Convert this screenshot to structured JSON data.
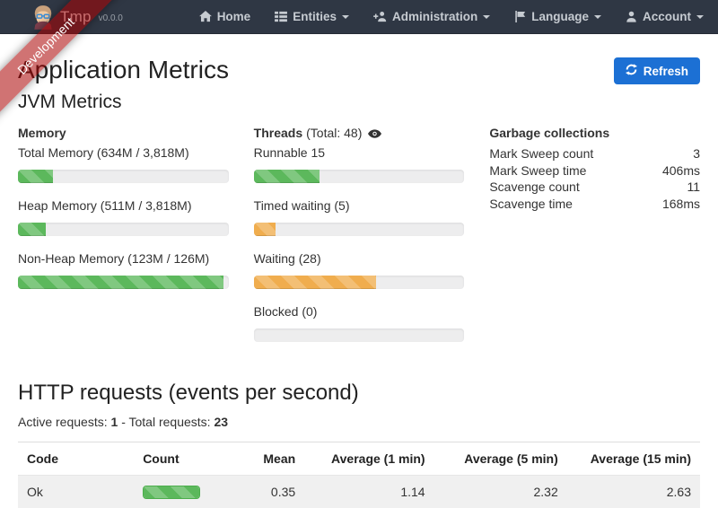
{
  "colors": {
    "navbar_bg": "#2f3744",
    "ribbon_bg": "rgba(170,0,0,0.55)",
    "accent_blue": "#1c70d4",
    "bar_green": "#5cb85c",
    "bar_orange": "#f0ad4e"
  },
  "navbar": {
    "brand": {
      "name": "Tmp",
      "version": "v0.0.0"
    },
    "items": [
      {
        "label": "Home",
        "icon": "home-icon",
        "caret": false
      },
      {
        "label": "Entities",
        "icon": "list-icon",
        "caret": true
      },
      {
        "label": "Administration",
        "icon": "user-plus-icon",
        "caret": true
      },
      {
        "label": "Language",
        "icon": "flag-icon",
        "caret": true
      },
      {
        "label": "Account",
        "icon": "user-icon",
        "caret": true
      }
    ]
  },
  "ribbon": {
    "label": "Development"
  },
  "page": {
    "title": "Application Metrics",
    "refresh_label": "Refresh"
  },
  "jvm": {
    "title": "JVM Metrics",
    "memory": {
      "title": "Memory",
      "bars": [
        {
          "label": "Total Memory (634M / 3,818M)",
          "percent": 16.6,
          "color": "#5cb85c"
        },
        {
          "label": "Heap Memory (511M / 3,818M)",
          "percent": 13.4,
          "color": "#5cb85c"
        },
        {
          "label": "Non-Heap Memory (123M / 126M)",
          "percent": 97.6,
          "color": "#5cb85c"
        }
      ]
    },
    "threads": {
      "title": "Threads",
      "total_label": "(Total: 48)",
      "bars": [
        {
          "label": "Runnable 15",
          "percent": 31.25,
          "color": "#5cb85c"
        },
        {
          "label": "Timed waiting (5)",
          "percent": 10.4,
          "color": "#f0ad4e"
        },
        {
          "label": "Waiting (28)",
          "percent": 58.3,
          "color": "#f0ad4e"
        },
        {
          "label": "Blocked (0)",
          "percent": 0,
          "color": "#f0ad4e"
        }
      ]
    },
    "gc": {
      "title": "Garbage collections",
      "rows": [
        {
          "label": "Mark Sweep count",
          "value": "3"
        },
        {
          "label": "Mark Sweep time",
          "value": "406ms"
        },
        {
          "label": "Scavenge count",
          "value": "11"
        },
        {
          "label": "Scavenge time",
          "value": "168ms"
        }
      ]
    }
  },
  "http": {
    "title": "HTTP requests (events per second)",
    "active_label": "Active requests:",
    "active_value": "1",
    "separator": "-",
    "total_label": "Total requests:",
    "total_value": "23",
    "table": {
      "headers": [
        "Code",
        "Count",
        "Mean",
        "Average (1 min)",
        "Average (5 min)",
        "Average (15 min)"
      ],
      "rows": [
        {
          "code": "Ok",
          "count_percent": 100,
          "count_color": "#5cb85c",
          "mean": "0.35",
          "avg1": "1.14",
          "avg5": "2.32",
          "avg15": "2.63"
        }
      ]
    }
  }
}
